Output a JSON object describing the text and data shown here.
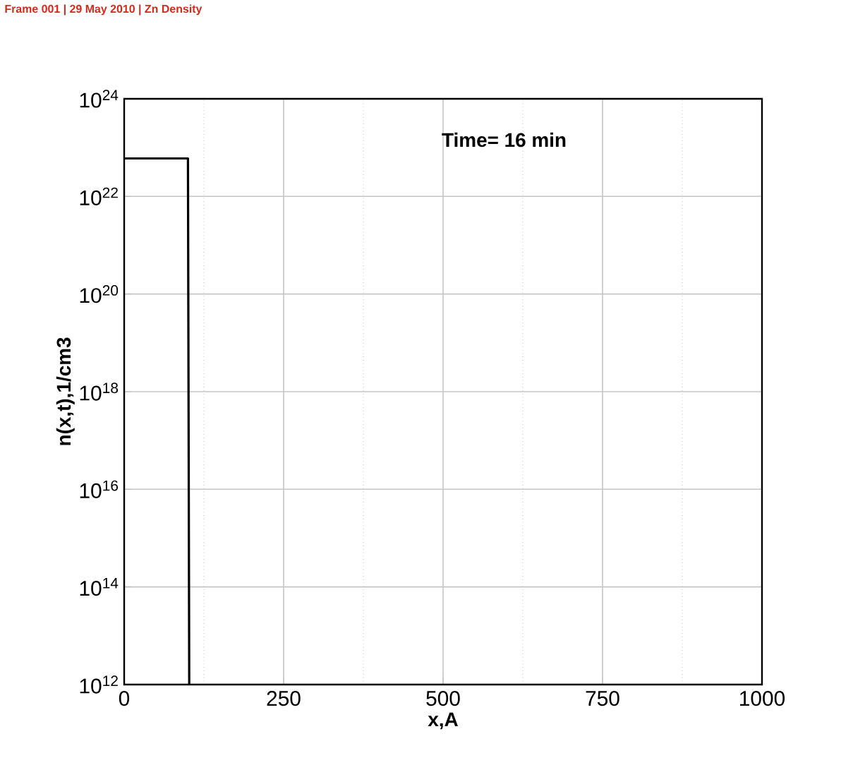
{
  "chart_data": {
    "type": "line",
    "title": "Frame 001 | 29 May 2010 | Zn Density",
    "xlabel": "x,A",
    "ylabel": "n(x,t),1/cm3",
    "annotations": [
      "Time=      16  min"
    ],
    "log": "y",
    "grid": true,
    "marker": "none",
    "line_style": "solid",
    "xlim": [
      0,
      1000
    ],
    "xticks": [
      0,
      250,
      500,
      750,
      1000
    ],
    "ylim": [
      1000000000000.0,
      1e+24
    ],
    "yticks": [
      {
        "value": 1000000000000.0,
        "label": "10$^{12}$"
      },
      {
        "value": 100000000000000.0,
        "label": "10$^{14}$"
      },
      {
        "value": 1e+16,
        "label": "10$^{16}$"
      },
      {
        "value": 1e+18,
        "label": "10$^{18}$"
      },
      {
        "value": 1e+20,
        "label": "10$^{20}$"
      },
      {
        "value": 1e+22,
        "label": "10$^{22}$"
      },
      {
        "value": 1e+24,
        "label": "10$^{24}$"
      }
    ],
    "series": [
      {
        "color": "#000000",
        "x": [
          0,
          100,
          102
        ],
        "values": [
          6e+22,
          6e+22,
          1000000000000.0
        ]
      }
    ]
  }
}
